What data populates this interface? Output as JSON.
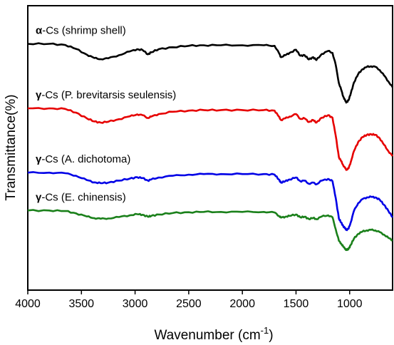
{
  "chart_data": {
    "type": "line",
    "title": "",
    "xlabel_main": "Wavenumber (cm",
    "xlabel_sup": "-1",
    "xlabel_tail": ")",
    "ylabel": "Transmittance(%)",
    "xlim": [
      4000,
      600
    ],
    "x_reversed": true,
    "x_ticks": [
      "4000",
      "3500",
      "3000",
      "2500",
      "2000",
      "1500",
      "1000"
    ],
    "x_tick_values": [
      4000,
      3500,
      3000,
      2500,
      2000,
      1500,
      1000
    ],
    "y_ticks_shown": false,
    "ylim": [
      0,
      100
    ],
    "grid": false,
    "series": [
      {
        "name": "α-Cs (shrimp shell)",
        "greek": "α",
        "rest": "-Cs (shrimp shell)",
        "color": "#000000",
        "x": [
          4000,
          3800,
          3650,
          3550,
          3450,
          3380,
          3320,
          3250,
          3150,
          3050,
          2980,
          2930,
          2880,
          2850,
          2780,
          2650,
          2500,
          2360,
          2200,
          2000,
          1800,
          1700,
          1660,
          1640,
          1600,
          1560,
          1500,
          1460,
          1420,
          1380,
          1340,
          1310,
          1260,
          1200,
          1160,
          1130,
          1100,
          1080,
          1060,
          1040,
          1030,
          1010,
          990,
          960,
          920,
          880,
          840,
          800,
          760,
          720,
          680,
          640,
          600
        ],
        "y": [
          86.6,
          86.6,
          86.2,
          84.8,
          82.8,
          81.6,
          81.2,
          81.5,
          82.6,
          83.9,
          84.7,
          84.4,
          82.9,
          83.6,
          84.7,
          85.4,
          85.9,
          86.1,
          86.1,
          86.1,
          86.1,
          85.9,
          83.4,
          81.9,
          82.6,
          83.4,
          84.5,
          82.4,
          82.6,
          81.1,
          81.9,
          80.9,
          83.0,
          84.1,
          83.4,
          79.2,
          72.7,
          70.6,
          68.1,
          66.5,
          66.0,
          66.8,
          69.1,
          73.0,
          76.0,
          77.7,
          78.5,
          78.7,
          78.5,
          77.4,
          75.5,
          73.4,
          71.3
        ]
      },
      {
        "name": "γ-Cs (P. brevitarsis seulensis)",
        "greek": "γ",
        "rest": "-Cs (P. brevitarsis seulensis)",
        "color": "#e60000",
        "x": [
          4000,
          3800,
          3650,
          3550,
          3450,
          3380,
          3320,
          3250,
          3150,
          3050,
          2980,
          2930,
          2880,
          2850,
          2780,
          2650,
          2500,
          2360,
          2200,
          2000,
          1800,
          1700,
          1660,
          1640,
          1600,
          1560,
          1500,
          1460,
          1420,
          1380,
          1340,
          1310,
          1260,
          1200,
          1160,
          1130,
          1100,
          1080,
          1060,
          1040,
          1030,
          1010,
          990,
          960,
          920,
          880,
          840,
          800,
          760,
          720,
          680,
          640,
          600
        ],
        "y": [
          63.9,
          63.9,
          63.7,
          62.4,
          60.4,
          59.3,
          58.9,
          59.2,
          60.1,
          61.1,
          61.8,
          61.5,
          60.5,
          61.0,
          61.9,
          62.7,
          63.1,
          63.3,
          63.3,
          63.3,
          63.3,
          63.1,
          61.0,
          59.8,
          60.4,
          61.0,
          61.9,
          60.2,
          60.4,
          59.1,
          59.8,
          58.9,
          60.6,
          61.5,
          60.6,
          54.3,
          46.7,
          45.4,
          43.9,
          42.8,
          42.3,
          42.8,
          45.0,
          48.9,
          52.1,
          53.8,
          54.6,
          54.8,
          54.6,
          53.4,
          51.1,
          48.9,
          47.1
        ]
      },
      {
        "name": "γ-Cs (A. dichotoma)",
        "greek": "γ",
        "rest": "-Cs (A. dichotoma)",
        "color": "#0000e6",
        "x": [
          4000,
          3800,
          3650,
          3550,
          3450,
          3380,
          3320,
          3250,
          3150,
          3050,
          2980,
          2930,
          2880,
          2850,
          2780,
          2650,
          2500,
          2360,
          2200,
          2000,
          1800,
          1700,
          1660,
          1640,
          1600,
          1560,
          1500,
          1460,
          1420,
          1380,
          1340,
          1310,
          1260,
          1200,
          1160,
          1130,
          1100,
          1080,
          1060,
          1040,
          1030,
          1010,
          990,
          960,
          920,
          880,
          840,
          800,
          760,
          720,
          680,
          640,
          600
        ],
        "y": [
          41.3,
          41.3,
          41.1,
          40.2,
          38.7,
          37.9,
          37.6,
          37.8,
          38.5,
          39.2,
          39.7,
          39.4,
          38.5,
          38.9,
          39.6,
          40.2,
          40.6,
          40.8,
          40.8,
          40.8,
          40.8,
          40.6,
          38.9,
          37.8,
          38.3,
          38.9,
          39.6,
          38.3,
          38.5,
          37.4,
          37.8,
          37.2,
          38.5,
          39.1,
          38.3,
          32.4,
          25.1,
          23.8,
          22.5,
          21.6,
          21.2,
          21.6,
          23.8,
          27.9,
          30.6,
          32.0,
          32.6,
          32.8,
          32.6,
          31.8,
          30.0,
          27.9,
          25.6
        ]
      },
      {
        "name": "γ-Cs (E. chinensis)",
        "greek": "γ",
        "rest": "-Cs (E. chinensis)",
        "color": "#1a801a",
        "x": [
          4000,
          3800,
          3650,
          3550,
          3450,
          3380,
          3320,
          3250,
          3150,
          3050,
          2980,
          2930,
          2880,
          2850,
          2780,
          2650,
          2500,
          2360,
          2200,
          2000,
          1800,
          1700,
          1660,
          1640,
          1600,
          1560,
          1500,
          1460,
          1420,
          1380,
          1340,
          1310,
          1260,
          1200,
          1160,
          1130,
          1100,
          1080,
          1060,
          1040,
          1030,
          1010,
          990,
          960,
          920,
          880,
          840,
          800,
          760,
          720,
          680,
          640,
          600
        ],
        "y": [
          28.0,
          28.0,
          27.8,
          27.0,
          25.9,
          25.3,
          25.1,
          25.2,
          25.7,
          26.3,
          26.7,
          26.5,
          25.8,
          26.1,
          26.6,
          27.1,
          27.4,
          27.5,
          27.5,
          27.5,
          27.5,
          27.3,
          26.1,
          25.5,
          25.8,
          26.1,
          26.6,
          25.6,
          25.8,
          25.0,
          25.4,
          24.9,
          25.9,
          26.3,
          25.6,
          21.4,
          17.3,
          16.4,
          15.3,
          14.5,
          14.1,
          14.5,
          15.9,
          18.1,
          19.8,
          20.6,
          21.0,
          21.2,
          21.0,
          20.4,
          19.5,
          18.4,
          17.5
        ]
      }
    ]
  }
}
